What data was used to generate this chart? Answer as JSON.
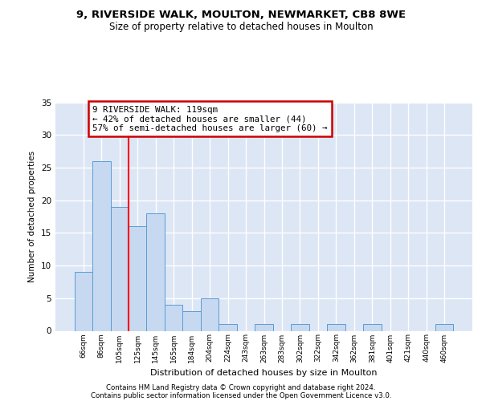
{
  "title1": "9, RIVERSIDE WALK, MOULTON, NEWMARKET, CB8 8WE",
  "title2": "Size of property relative to detached houses in Moulton",
  "xlabel": "Distribution of detached houses by size in Moulton",
  "ylabel": "Number of detached properties",
  "categories": [
    "66sqm",
    "86sqm",
    "105sqm",
    "125sqm",
    "145sqm",
    "165sqm",
    "184sqm",
    "204sqm",
    "224sqm",
    "243sqm",
    "263sqm",
    "283sqm",
    "302sqm",
    "322sqm",
    "342sqm",
    "362sqm",
    "381sqm",
    "401sqm",
    "421sqm",
    "440sqm",
    "460sqm"
  ],
  "values": [
    9,
    26,
    19,
    16,
    18,
    4,
    3,
    5,
    1,
    0,
    1,
    0,
    1,
    0,
    1,
    0,
    1,
    0,
    0,
    0,
    1
  ],
  "bar_color": "#c6d9f1",
  "bar_edge_color": "#5b9bd5",
  "vline_x": 2.5,
  "vline_color": "red",
  "annotation_text": "9 RIVERSIDE WALK: 119sqm\n← 42% of detached houses are smaller (44)\n57% of semi-detached houses are larger (60) →",
  "annotation_box_color": "white",
  "annotation_box_edge": "#cc0000",
  "ylim": [
    0,
    35
  ],
  "yticks": [
    0,
    5,
    10,
    15,
    20,
    25,
    30,
    35
  ],
  "background_color": "#dce6f5",
  "footer1": "Contains HM Land Registry data © Crown copyright and database right 2024.",
  "footer2": "Contains public sector information licensed under the Open Government Licence v3.0."
}
